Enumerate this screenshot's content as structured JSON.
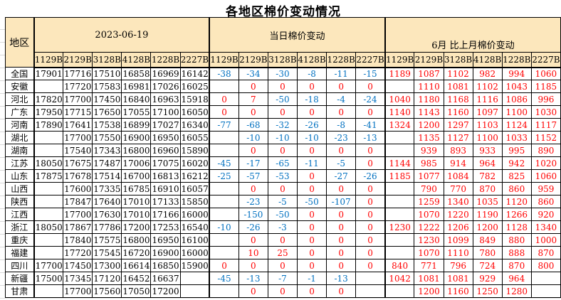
{
  "title": "各地区棉价变动情况",
  "colors": {
    "header_bg": "#FCE7BC",
    "price_text": "#000000",
    "negative_change": "#0070C0",
    "zero_or_positive_change": "#FF0000",
    "monthly_change": "#FF0000",
    "border": "#000000"
  },
  "table": {
    "region_header": "地区",
    "groups": [
      {
        "label": "2023-06-19"
      },
      {
        "label": "当日棉价变动"
      },
      {
        "label": "6月 比上月棉价变动"
      }
    ],
    "grade_columns": [
      "1129B",
      "2129B",
      "3128B",
      "4128B",
      "1228B",
      "2227B"
    ],
    "rows": [
      {
        "region": "全国",
        "prices": [
          "17901",
          "17716",
          "17510",
          "16858",
          "16969",
          "16142"
        ],
        "daily_change": [
          "-38",
          "-34",
          "-30",
          "-8",
          "-11",
          "-15"
        ],
        "monthly_change": [
          "1189",
          "1087",
          "1102",
          "982",
          "994",
          "1060"
        ]
      },
      {
        "region": "安徽",
        "prices": [
          "",
          "17720",
          "17583",
          "16981",
          "17026",
          "16025"
        ],
        "daily_change": [
          "",
          "0",
          "0",
          "0",
          "0",
          "0"
        ],
        "monthly_change": [
          "",
          "1110",
          "1081",
          "1102",
          "1043",
          "1185"
        ]
      },
      {
        "region": "河北",
        "prices": [
          "17820",
          "17700",
          "17450",
          "16840",
          "16963",
          "15918"
        ],
        "daily_change": [
          "0",
          "7",
          "-50",
          "-18",
          "-4",
          "-24"
        ],
        "monthly_change": [
          "1040",
          "1180",
          "1168",
          "1116",
          "1086",
          "996"
        ]
      },
      {
        "region": "广东",
        "prices": [
          "17950",
          "17715",
          "17650",
          "17055",
          "17100",
          "16050"
        ],
        "daily_change": [
          "0",
          "0",
          "0",
          "0",
          "0",
          "0"
        ],
        "monthly_change": [
          "1140",
          "1143",
          "1160",
          "1097",
          "1100",
          "1030"
        ]
      },
      {
        "region": "河南",
        "prices": [
          "17890",
          "17641",
          "17538",
          "16899",
          "17027",
          "16340"
        ],
        "daily_change": [
          "-77",
          "-68",
          "-32",
          "-26",
          "-8",
          "-41"
        ],
        "monthly_change": [
          "1324",
          "1200",
          "1297",
          "1103",
          "1124",
          "1117"
        ]
      },
      {
        "region": "湖北",
        "prices": [
          "",
          "17700",
          "17550",
          "16900",
          "16950",
          "16055"
        ],
        "daily_change": [
          "",
          "-10",
          "-10",
          "-10",
          "-23",
          "-13"
        ],
        "monthly_change": [
          "",
          "1135",
          "1127",
          "1100",
          "1033",
          "1152"
        ]
      },
      {
        "region": "湖南",
        "prices": [
          "",
          "17540",
          "17343",
          "16800",
          "16960",
          "15890"
        ],
        "daily_change": [
          "",
          "0",
          "0",
          "0",
          "0",
          "0"
        ],
        "monthly_change": [
          "",
          "939",
          "893",
          "933",
          "995",
          "890"
        ]
      },
      {
        "region": "江苏",
        "prices": [
          "18050",
          "17675",
          "17487",
          "17006",
          "17075",
          "16020"
        ],
        "daily_change": [
          "-45",
          "-17",
          "-65",
          "-11",
          "-5",
          "0"
        ],
        "monthly_change": [
          "1144",
          "985",
          "914",
          "964",
          "942",
          "1020"
        ]
      },
      {
        "region": "山东",
        "prices": [
          "17875",
          "17678",
          "17514",
          "16700",
          "16813",
          "16212"
        ],
        "daily_change": [
          "-25",
          "-57",
          "-53",
          "0",
          "-27",
          "-26"
        ],
        "monthly_change": [
          "1185",
          "1077",
          "1084",
          "782",
          "825",
          "1060"
        ]
      },
      {
        "region": "山西",
        "prices": [
          "",
          "17600",
          "17335",
          "16785",
          "16910",
          "16057"
        ],
        "daily_change": [
          "",
          "0",
          "0",
          "0",
          "0",
          "0"
        ],
        "monthly_change": [
          "",
          "790",
          "770",
          "870",
          "860",
          "959"
        ]
      },
      {
        "region": "陕西",
        "prices": [
          "",
          "17847",
          "17640",
          "17010",
          "17133",
          "15850"
        ],
        "daily_change": [
          "",
          "-23",
          "-5",
          "-50",
          "-107",
          "0"
        ],
        "monthly_change": [
          "",
          "1259",
          "1340",
          "1035",
          "1120",
          "860"
        ]
      },
      {
        "region": "江西",
        "prices": [
          "",
          "17700",
          "17630",
          "17010",
          "17166",
          "16000"
        ],
        "daily_change": [
          "",
          "-150",
          "-50",
          "0",
          "0",
          "0"
        ],
        "monthly_change": [
          "",
          "1070",
          "1220",
          "1190",
          "1266",
          "920"
        ]
      },
      {
        "region": "浙江",
        "prices": [
          "18050",
          "17867",
          "17786",
          "17200",
          "17253",
          "16540"
        ],
        "daily_change": [
          "-10",
          "-26",
          "-3",
          "0",
          "0",
          "0"
        ],
        "monthly_change": [
          "1230",
          "1222",
          "1206",
          "1200",
          "1128",
          "1340"
        ]
      },
      {
        "region": "重庆",
        "prices": [
          "",
          "17840",
          "17575",
          "16800",
          "16950",
          "16100"
        ],
        "daily_change": [
          "",
          "0",
          "0",
          "0",
          "0",
          "0"
        ],
        "monthly_change": [
          "",
          "1230",
          "1099",
          "849",
          "880",
          "1000"
        ]
      },
      {
        "region": "福建",
        "prices": [
          "",
          "17720",
          "17545",
          "16720",
          "16900",
          "16000"
        ],
        "daily_change": [
          "",
          "10",
          "25",
          "0",
          "0",
          "0"
        ],
        "monthly_change": [
          "",
          "1070",
          "1110",
          "780",
          "888",
          "870"
        ]
      },
      {
        "region": "四川",
        "prices": [
          "17700",
          "17450",
          "17300",
          "16614",
          "16850",
          "15900"
        ],
        "daily_change": [
          "0",
          "0",
          "0",
          "0",
          "0",
          "0"
        ],
        "monthly_change": [
          "840",
          "771",
          "796",
          "724",
          "870",
          "800"
        ]
      },
      {
        "region": "新疆",
        "prices": [
          "17500",
          "17345",
          "17120",
          "16452",
          "16637",
          ""
        ],
        "daily_change": [
          "-45",
          "-13",
          "-7",
          "-1",
          "-13",
          ""
        ],
        "monthly_change": [
          "1042",
          "1081",
          "1081",
          "929",
          "964",
          ""
        ]
      },
      {
        "region": "甘肃",
        "prices": [
          "",
          "17700",
          "17560",
          "17050",
          "17200",
          ""
        ],
        "daily_change": [
          "",
          "0",
          "0",
          "0",
          "0",
          ""
        ],
        "monthly_change": [
          "",
          "1200",
          "1160",
          "1250",
          "1280",
          ""
        ]
      }
    ]
  }
}
